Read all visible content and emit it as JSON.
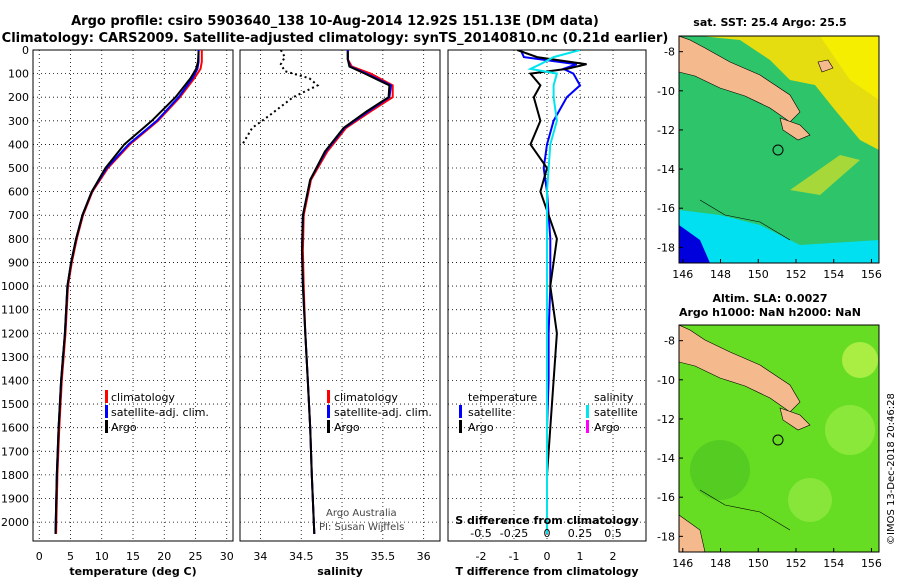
{
  "header": {
    "line1": "Argo profile: csiro 5903640_138 10-Aug-2014 12.92S 151.13E (DM data)",
    "line2": "Climatology: CARS2009. Satellite-adjusted climatology: synTS_20140810.nc (0.21d earlier)"
  },
  "colors": {
    "climatology": "#ff0000",
    "satellite": "#0000ff",
    "argo": "#000000",
    "sat_salinity": "#00e5ee",
    "argo_salinity_marker": "#ff00ff",
    "land": "#f5b98e",
    "sea_warm": "#e8e000",
    "sea_mid": "#33cc66",
    "sea_cool": "#00e0f0",
    "sla_bg": "#66dd22"
  },
  "chart_data": [
    {
      "id": "temperature",
      "type": "line",
      "xlabel": "temperature (deg C)",
      "xlim": [
        -1,
        31
      ],
      "xticks": [
        0,
        5,
        10,
        15,
        20,
        25,
        30
      ],
      "ylim": [
        2080,
        0
      ],
      "yticks": [
        0,
        100,
        200,
        300,
        400,
        500,
        600,
        700,
        800,
        900,
        1000,
        1100,
        1200,
        1300,
        1400,
        1500,
        1600,
        1700,
        1800,
        1900,
        2000
      ],
      "legend": [
        "climatology",
        "satellite-adj. clim.",
        "Argo"
      ],
      "series": [
        {
          "name": "climatology",
          "color_key": "climatology",
          "x": [
            26.0,
            26.0,
            25.8,
            24.8,
            22.5,
            19.0,
            14.5,
            11.0,
            8.5,
            7.0,
            6.0,
            5.2,
            4.6,
            4.2,
            3.6,
            3.2,
            2.9,
            2.7
          ],
          "y": [
            0,
            50,
            80,
            120,
            200,
            300,
            400,
            500,
            600,
            700,
            800,
            900,
            1000,
            1200,
            1400,
            1600,
            1800,
            2050
          ]
        },
        {
          "name": "satellite-adj. clim.",
          "color_key": "satellite",
          "x": [
            25.5,
            25.5,
            25.3,
            24.5,
            22.3,
            18.8,
            14.3,
            10.8,
            8.4,
            6.9,
            5.9,
            5.1,
            4.5,
            4.1,
            3.5,
            3.1,
            2.8,
            2.6
          ],
          "y": [
            0,
            50,
            80,
            120,
            200,
            300,
            400,
            500,
            600,
            700,
            800,
            900,
            1000,
            1200,
            1400,
            1600,
            1800,
            2050
          ]
        },
        {
          "name": "Argo",
          "color_key": "argo",
          "x": [
            25.5,
            25.4,
            25.1,
            24.2,
            21.8,
            18.0,
            13.6,
            10.6,
            8.4,
            6.9,
            5.9,
            5.1,
            4.5,
            4.1,
            3.5,
            3.1,
            2.8,
            2.6
          ],
          "y": [
            5,
            50,
            80,
            120,
            200,
            300,
            400,
            500,
            600,
            700,
            800,
            900,
            1000,
            1200,
            1400,
            1600,
            1800,
            2050
          ]
        }
      ]
    },
    {
      "id": "salinity",
      "type": "line",
      "xlabel": "salinity",
      "xlim": [
        33.75,
        36.2
      ],
      "xticks": [
        34,
        34.5,
        35,
        35.5,
        36
      ],
      "ylim": [
        2080,
        0
      ],
      "legend": [
        "climatology",
        "satellite-adj. clim.",
        "Argo"
      ],
      "annotations": [
        "Argo Australia",
        "PI: Susan Wijffels"
      ],
      "series": [
        {
          "name": "climatology",
          "color_key": "climatology",
          "x": [
            35.07,
            35.07,
            35.12,
            35.35,
            35.62,
            35.62,
            35.35,
            35.05,
            34.82,
            34.62,
            34.53,
            34.52,
            34.53,
            34.55,
            34.58,
            34.61,
            34.63,
            34.66
          ],
          "y": [
            0,
            40,
            70,
            100,
            150,
            200,
            260,
            330,
            430,
            550,
            700,
            850,
            1000,
            1200,
            1400,
            1600,
            1800,
            2050
          ]
        },
        {
          "name": "satellite-adj. clim.",
          "color_key": "satellite",
          "x": [
            35.07,
            35.07,
            35.1,
            35.3,
            35.6,
            35.58,
            35.32,
            35.03,
            34.8,
            34.61,
            34.52,
            34.51,
            34.52,
            34.55,
            34.58,
            34.61,
            34.63,
            34.66
          ],
          "y": [
            0,
            40,
            70,
            100,
            150,
            200,
            260,
            330,
            430,
            550,
            700,
            850,
            1000,
            1200,
            1400,
            1600,
            1800,
            2050
          ]
        },
        {
          "name": "Argo",
          "color_key": "argo",
          "x": [
            35.07,
            35.07,
            35.09,
            35.28,
            35.58,
            35.57,
            35.3,
            35.02,
            34.79,
            34.61,
            34.52,
            34.51,
            34.52,
            34.55,
            34.58,
            34.61,
            34.63,
            34.66
          ],
          "y": [
            5,
            40,
            70,
            100,
            150,
            200,
            260,
            330,
            430,
            550,
            700,
            850,
            1000,
            1200,
            1400,
            1600,
            1800,
            2050
          ]
        },
        {
          "name": "Argo (dotted)",
          "color_key": "argo",
          "style": "dotted",
          "x": [
            34.25,
            34.3,
            34.25,
            34.3,
            34.6,
            34.7,
            34.4,
            34.1,
            33.9,
            33.78
          ],
          "y": [
            0,
            30,
            60,
            90,
            120,
            150,
            200,
            280,
            330,
            400
          ]
        }
      ]
    },
    {
      "id": "difference",
      "type": "line",
      "xlabel": "T difference from climatology",
      "toplabel": "S difference from climatology",
      "xlim": [
        -3,
        3
      ],
      "xticks": [
        -2,
        -1,
        0,
        1,
        2
      ],
      "sxticks": [
        "-0.5",
        "-0.25",
        "0",
        "0.25",
        "0.5"
      ],
      "ylim": [
        2080,
        0
      ],
      "legend_left_title": "temperature",
      "legend_left": [
        "satellite",
        "Argo"
      ],
      "legend_right_title": "salinity",
      "legend_right": [
        "satellite",
        "Argo"
      ],
      "series": [
        {
          "name": "T satellite",
          "color_key": "satellite",
          "x": [
            -0.8,
            -0.7,
            0.9,
            0.5,
            0.8,
            1.0,
            0.6,
            0.2,
            0.0,
            -0.1,
            0.0,
            0.1,
            0.1,
            0.05,
            0.05,
            0.0,
            0.0,
            0.0
          ],
          "y": [
            0,
            30,
            60,
            80,
            100,
            150,
            200,
            300,
            400,
            500,
            600,
            800,
            1000,
            1200,
            1400,
            1600,
            1800,
            2050
          ]
        },
        {
          "name": "T Argo",
          "color_key": "argo",
          "x": [
            -0.9,
            -0.3,
            1.2,
            0.6,
            -0.5,
            -0.2,
            -0.4,
            -0.2,
            -0.5,
            0.0,
            -0.2,
            0.3,
            0.1,
            0.3,
            0.2,
            0.1,
            0.0,
            0.0
          ],
          "y": [
            0,
            30,
            60,
            80,
            100,
            150,
            200,
            300,
            400,
            500,
            600,
            800,
            1000,
            1200,
            1400,
            1600,
            1800,
            2050
          ]
        },
        {
          "name": "S satellite",
          "color_key": "sat_salinity",
          "x": [
            1.0,
            0.2,
            -0.2,
            -0.5,
            0.3,
            0.2,
            0.2,
            0.3,
            0.1,
            0.0,
            0.0,
            0.0,
            0.0,
            0.0
          ],
          "y": [
            0,
            30,
            60,
            80,
            100,
            150,
            200,
            300,
            400,
            600,
            800,
            1200,
            1600,
            2050
          ]
        }
      ]
    },
    {
      "id": "sst_map",
      "type": "heatmap",
      "title": "sat. SST: 25.4  Argo: 25.5",
      "xticks": [
        146,
        148,
        150,
        152,
        154,
        156
      ],
      "yticks": [
        -8,
        -10,
        -12,
        -14,
        -16,
        -18
      ],
      "xlim": [
        145.8,
        156.4
      ],
      "ylim": [
        -18.8,
        -7.2
      ],
      "marker": {
        "lon": 151.13,
        "lat": -12.92
      }
    },
    {
      "id": "sla_map",
      "type": "heatmap",
      "title_line1": "Altim. SLA: 0.0027",
      "title_line2": "Argo h1000: NaN h2000: NaN",
      "xticks": [
        146,
        148,
        150,
        152,
        154,
        156
      ],
      "yticks": [
        -8,
        -10,
        -12,
        -14,
        -16,
        -18
      ],
      "xlim": [
        145.8,
        156.4
      ],
      "ylim": [
        -18.8,
        -7.2
      ],
      "marker": {
        "lon": 151.13,
        "lat": -12.92
      }
    }
  ],
  "credit": "©IMOS 13-Dec-2018 20:46:28"
}
